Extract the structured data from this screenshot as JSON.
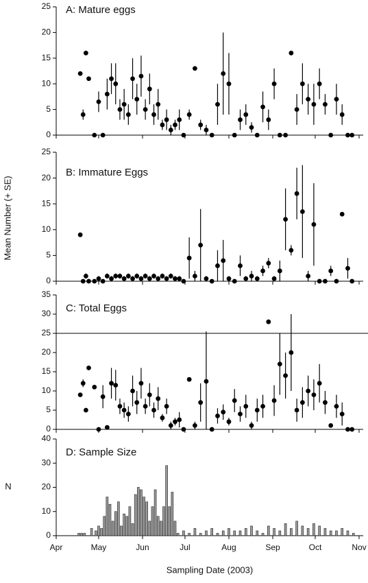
{
  "chart_data": [
    {
      "type": "scatter",
      "title": "A: Mature eggs",
      "color": "#000000",
      "x": [
        108,
        110,
        112,
        114,
        118,
        121,
        124,
        127,
        130,
        133,
        136,
        139,
        142,
        145,
        148,
        151,
        154,
        157,
        160,
        163,
        166,
        169,
        172,
        175,
        178,
        181,
        185,
        189,
        193,
        197,
        201,
        205,
        209,
        213,
        217,
        221,
        225,
        229,
        233,
        237,
        241,
        245,
        249,
        253,
        257,
        261,
        265,
        269,
        273,
        277,
        281,
        285,
        289,
        293,
        297,
        300
      ],
      "values": [
        12,
        4,
        16,
        11,
        0,
        6.5,
        0,
        8,
        11,
        10,
        5,
        6,
        4,
        11,
        7,
        11.5,
        5,
        9,
        4,
        6,
        2,
        3,
        1,
        2,
        3,
        0,
        4,
        13,
        2,
        1,
        0,
        6,
        12,
        10,
        0,
        3,
        4,
        1.5,
        0,
        5.5,
        3,
        10,
        0,
        0,
        16,
        5,
        10,
        7,
        6,
        10,
        6,
        0,
        7,
        4,
        0,
        0
      ],
      "errors": [
        0,
        1,
        0,
        0,
        0,
        2,
        0,
        3,
        3,
        4,
        2,
        3,
        2,
        4,
        3,
        4,
        2,
        3,
        2,
        3,
        1,
        2,
        1,
        1,
        2,
        0,
        1,
        0,
        1,
        1,
        0,
        4,
        8,
        6,
        0,
        2,
        2,
        1,
        0,
        3,
        2,
        3,
        0,
        0,
        0,
        3,
        4,
        3,
        4,
        3,
        2,
        0,
        3,
        2,
        0,
        0
      ],
      "ylim": [
        0,
        25
      ],
      "yticks": [
        0,
        5,
        10,
        15,
        20,
        25
      ]
    },
    {
      "type": "scatter",
      "title": "B: Immature Eggs",
      "ylabel": "Mean Number (+ SE)",
      "color": "#000000",
      "x": [
        108,
        110,
        112,
        114,
        118,
        121,
        124,
        127,
        130,
        133,
        136,
        139,
        142,
        145,
        148,
        151,
        154,
        157,
        160,
        163,
        166,
        169,
        172,
        175,
        178,
        181,
        185,
        189,
        193,
        197,
        201,
        205,
        209,
        213,
        217,
        221,
        225,
        229,
        233,
        237,
        241,
        245,
        249,
        253,
        257,
        261,
        265,
        269,
        273,
        277,
        281,
        285,
        289,
        293,
        297,
        300
      ],
      "values": [
        9,
        0,
        1,
        0,
        0,
        0.5,
        0,
        1,
        0.5,
        1,
        1,
        0.5,
        1,
        0.5,
        1,
        0.5,
        1,
        0.5,
        1,
        0.5,
        1,
        0.5,
        1,
        0.5,
        0.5,
        0,
        4.5,
        1,
        7,
        0.5,
        0,
        3,
        4,
        0.5,
        0,
        3,
        0.5,
        1,
        0.5,
        2,
        3.5,
        0.5,
        2,
        12,
        6,
        17,
        13.5,
        1,
        11,
        0,
        0,
        2,
        0,
        13,
        2.5,
        0
      ],
      "errors": [
        0,
        0,
        0.5,
        0,
        0,
        0.5,
        0,
        0.5,
        0.5,
        0.5,
        0.5,
        0.5,
        0.5,
        0.5,
        0.5,
        0.5,
        0.5,
        0.5,
        0.5,
        0.5,
        0.5,
        0.5,
        0.5,
        0.5,
        0.5,
        0,
        4,
        1,
        7,
        0.5,
        0,
        3,
        4,
        0.5,
        0,
        2,
        0.5,
        1,
        0.5,
        1,
        1,
        0.5,
        2,
        6,
        1,
        5,
        9,
        1,
        8,
        0,
        0,
        1,
        0,
        0,
        2,
        0
      ],
      "ylim": [
        0,
        25
      ],
      "yticks": [
        0,
        5,
        10,
        15,
        20,
        25
      ]
    },
    {
      "type": "scatter",
      "title": "C: Total Eggs",
      "color": "#000000",
      "reference_line": 25,
      "x": [
        108,
        110,
        112,
        114,
        118,
        121,
        124,
        127,
        130,
        133,
        136,
        139,
        142,
        145,
        148,
        151,
        154,
        157,
        160,
        163,
        166,
        169,
        172,
        175,
        178,
        181,
        185,
        189,
        193,
        197,
        201,
        205,
        209,
        213,
        217,
        221,
        225,
        229,
        233,
        237,
        241,
        245,
        249,
        253,
        257,
        261,
        265,
        269,
        273,
        277,
        281,
        285,
        289,
        293,
        297,
        300
      ],
      "values": [
        9,
        12,
        5,
        16,
        11,
        0,
        8.5,
        0.5,
        12,
        11.5,
        6,
        5,
        4,
        10,
        7,
        12,
        6,
        9,
        5,
        8,
        3,
        6,
        1,
        2,
        2.5,
        0,
        13,
        1,
        7,
        12.5,
        0,
        3.5,
        4.5,
        2,
        7.5,
        4,
        6,
        1,
        5,
        6,
        28,
        7.5,
        17,
        14,
        20,
        5,
        7,
        10,
        9,
        12,
        7,
        1,
        6,
        4,
        0,
        0
      ],
      "errors": [
        0,
        1,
        0,
        0,
        0,
        0,
        3,
        0,
        4,
        4,
        2,
        2,
        2,
        4,
        3,
        4,
        2,
        3,
        2,
        3,
        1,
        2,
        1,
        1,
        2,
        0,
        0,
        1,
        5,
        13,
        0,
        2,
        2,
        1,
        3,
        2,
        3,
        1,
        3,
        3,
        0,
        4,
        8,
        6,
        10,
        3,
        4,
        4,
        4,
        5,
        3,
        0,
        3,
        3,
        0,
        0
      ],
      "ylim": [
        0,
        35
      ],
      "yticks": [
        0,
        5,
        10,
        15,
        20,
        25,
        30,
        35
      ]
    },
    {
      "type": "bar",
      "title": "D: Sample Size",
      "ylabel": "N",
      "xlabel": "Sampling Date (2003)",
      "color": "#9a9a9a",
      "x": [
        107,
        109,
        111,
        113,
        116,
        119,
        121,
        123,
        125,
        127,
        129,
        131,
        133,
        135,
        137,
        139,
        141,
        143,
        145,
        147,
        149,
        151,
        153,
        155,
        157,
        159,
        161,
        163,
        165,
        167,
        169,
        171,
        173,
        175,
        177,
        181,
        185,
        189,
        193,
        197,
        201,
        205,
        209,
        213,
        217,
        221,
        225,
        229,
        233,
        237,
        241,
        245,
        249,
        253,
        257,
        261,
        265,
        269,
        273,
        277,
        281,
        285,
        289,
        293,
        297,
        301
      ],
      "values": [
        1,
        1,
        1,
        0,
        3,
        2,
        4,
        3,
        8,
        16,
        13,
        6,
        10,
        14,
        4,
        9,
        8,
        12,
        5,
        17,
        20,
        19,
        16,
        14,
        6,
        12,
        19,
        8,
        6,
        12,
        29,
        12,
        18,
        6,
        1,
        2,
        1,
        3,
        1,
        2,
        3,
        1,
        2,
        3,
        2,
        2,
        3,
        4,
        2,
        1,
        4,
        3,
        2,
        5,
        3,
        6,
        4,
        3,
        5,
        4,
        3,
        2,
        2,
        3,
        2,
        1
      ],
      "ylim": [
        0,
        40
      ],
      "yticks": [
        0,
        10,
        20,
        30,
        40
      ],
      "xlim": [
        91,
        305
      ],
      "xticks": [
        {
          "value": 91,
          "label": "Apr"
        },
        {
          "value": 121,
          "label": "May"
        },
        {
          "value": 152,
          "label": "Jun"
        },
        {
          "value": 182,
          "label": "Jul"
        },
        {
          "value": 213,
          "label": "Aug"
        },
        {
          "value": 244,
          "label": "Sep"
        },
        {
          "value": 274,
          "label": "Oct"
        },
        {
          "value": 305,
          "label": "Nov"
        }
      ]
    }
  ]
}
